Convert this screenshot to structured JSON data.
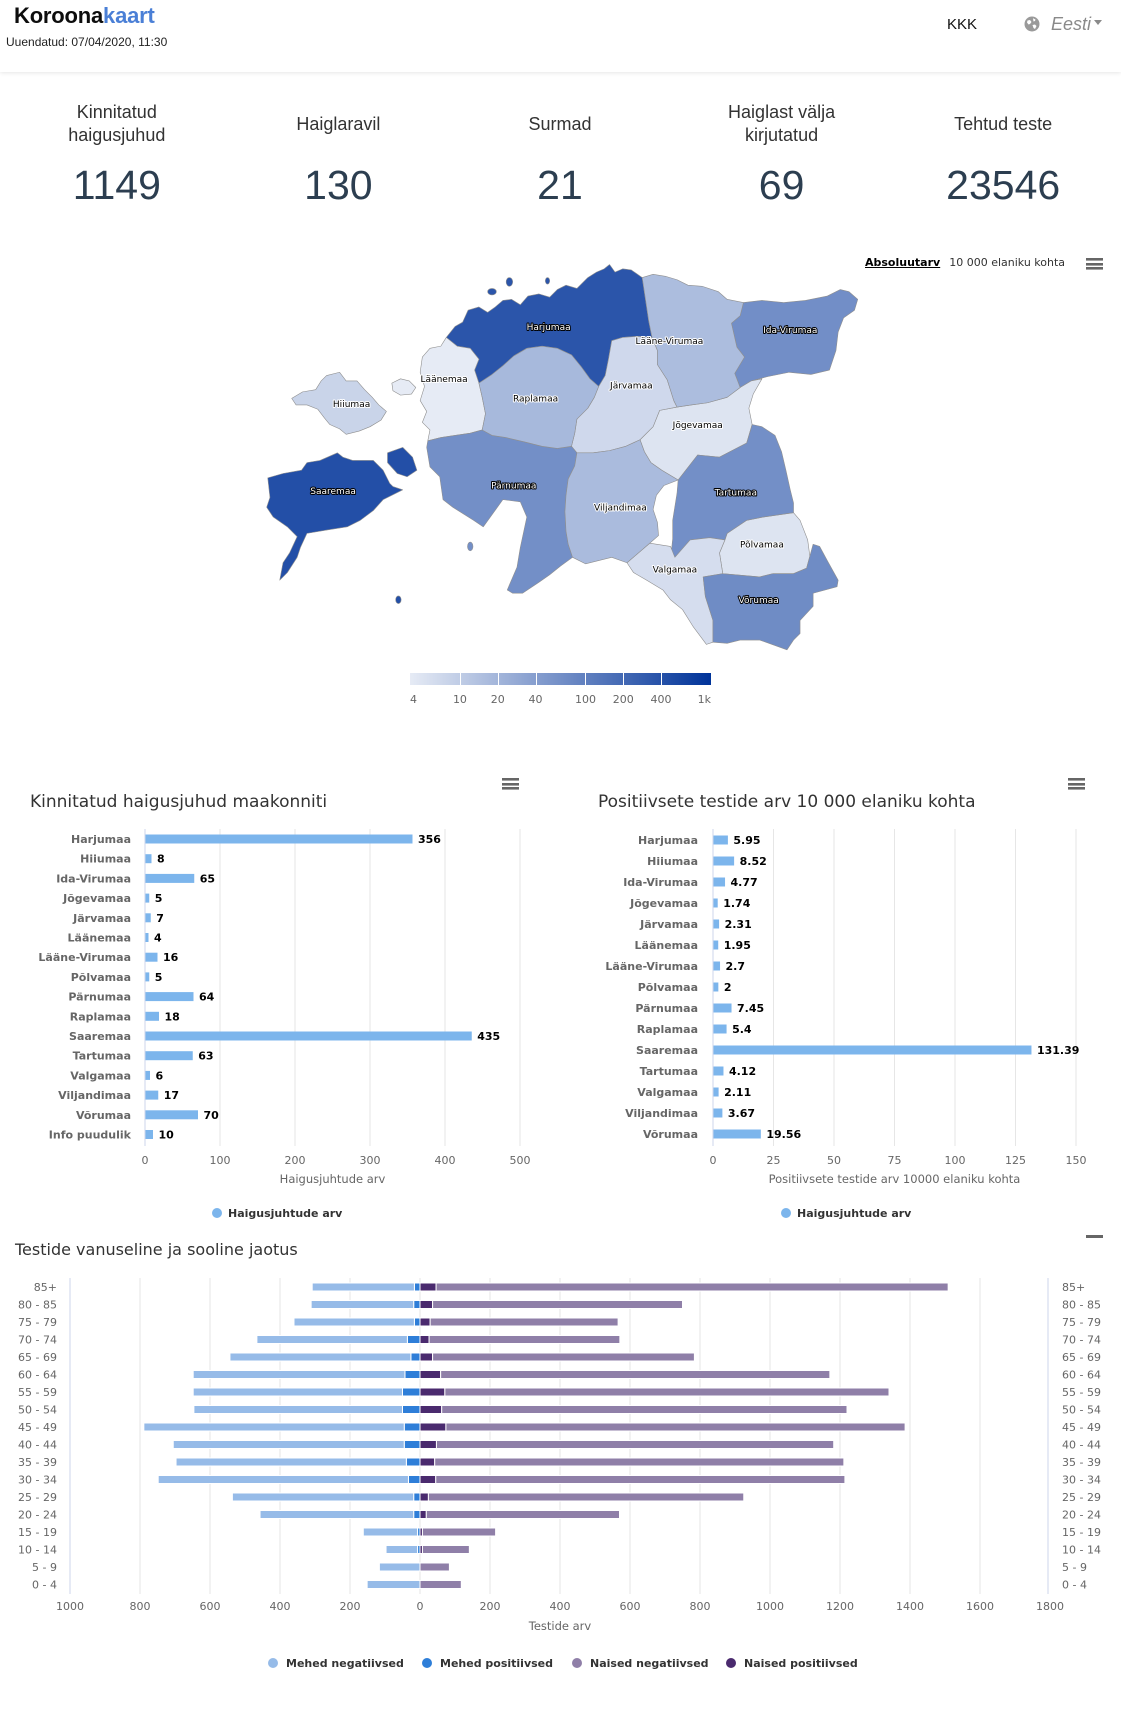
{
  "header": {
    "logo": {
      "part1": "Koroona",
      "part2": "kaart"
    },
    "updated": "Uuendatud: 07/04/2020, 11:30",
    "faq_link": "KKK",
    "language": "Eesti",
    "icons": {
      "language": "globe-icon",
      "dropdown": "caret-down-icon"
    }
  },
  "colors": {
    "brand_accent": "#4a7fd6",
    "stat_value": "#2c3e50",
    "bar": "#7cb5ec"
  },
  "stats": [
    {
      "label": "Kinnitatud haigusjuhud",
      "value": "1149"
    },
    {
      "label": "Haiglaravil",
      "value": "130"
    },
    {
      "label": "Surmad",
      "value": "21"
    },
    {
      "label": "Haiglast välja kirjutatud",
      "value": "69"
    },
    {
      "label": "Tehtud teste",
      "value": "23546"
    }
  ],
  "map": {
    "toggle": {
      "absolute": "Absoluutarv",
      "per_capita": "10 000 elaniku kohta",
      "selected": "absolute"
    },
    "menu_icon": "hamburger-icon",
    "color_scale": {
      "type": "logarithmic",
      "min": 4,
      "max": 1000,
      "min_color": "#e6ebf5",
      "max_color": "#003399"
    },
    "legend_ticks": [
      {
        "label": "4",
        "value": 4
      },
      {
        "label": "10",
        "value": 10
      },
      {
        "label": "20",
        "value": 20
      },
      {
        "label": "40",
        "value": 40
      },
      {
        "label": "100",
        "value": 100
      },
      {
        "label": "200",
        "value": 200
      },
      {
        "label": "400",
        "value": 400
      },
      {
        "label": "1k",
        "value": 1000
      }
    ],
    "counties": [
      {
        "name": "Harjumaa",
        "value": 356
      },
      {
        "name": "Hiiumaa",
        "value": 8
      },
      {
        "name": "Ida-Virumaa",
        "value": 65
      },
      {
        "name": "Jõgevamaa",
        "value": 5
      },
      {
        "name": "Järvamaa",
        "value": 7
      },
      {
        "name": "Läänemaa",
        "value": 4
      },
      {
        "name": "Lääne-Virumaa",
        "value": 16
      },
      {
        "name": "Põlvamaa",
        "value": 5
      },
      {
        "name": "Pärnumaa",
        "value": 64
      },
      {
        "name": "Raplamaa",
        "value": 18
      },
      {
        "name": "Saaremaa",
        "value": 435
      },
      {
        "name": "Tartumaa",
        "value": 63
      },
      {
        "name": "Valgamaa",
        "value": 6
      },
      {
        "name": "Viljandimaa",
        "value": 17
      },
      {
        "name": "Võrumaa",
        "value": 70
      }
    ]
  },
  "chart_data": [
    {
      "type": "bar",
      "title": "Kinnitatud haigusjuhud maakonniti",
      "categories": [
        "Harjumaa",
        "Hiiumaa",
        "Ida-Virumaa",
        "Jõgevamaa",
        "Järvamaa",
        "Läänemaa",
        "Lääne-Virumaa",
        "Põlvamaa",
        "Pärnumaa",
        "Raplamaa",
        "Saaremaa",
        "Tartumaa",
        "Valgamaa",
        "Viljandimaa",
        "Võrumaa",
        "Info puudulik"
      ],
      "series": [
        {
          "name": "Haigusjuhtude arv",
          "color": "#7cb5ec",
          "values": [
            356,
            8,
            65,
            5,
            7,
            4,
            16,
            5,
            64,
            18,
            435,
            63,
            6,
            17,
            70,
            10
          ]
        }
      ],
      "xlabel": "Haigusjuhtude arv",
      "ylabel": "",
      "xlim": [
        0,
        500
      ],
      "xticks": [
        0,
        100,
        200,
        300,
        400,
        500
      ],
      "grid": true,
      "data_labels": true,
      "legend": "bottom-center"
    },
    {
      "type": "bar",
      "title": "Positiivsete testide arv 10 000 elaniku kohta",
      "categories": [
        "Harjumaa",
        "Hiiumaa",
        "Ida-Virumaa",
        "Jõgevamaa",
        "Järvamaa",
        "Läänemaa",
        "Lääne-Virumaa",
        "Põlvamaa",
        "Pärnumaa",
        "Raplamaa",
        "Saaremaa",
        "Tartumaa",
        "Valgamaa",
        "Viljandimaa",
        "Võrumaa"
      ],
      "series": [
        {
          "name": "Haigusjuhtude arv",
          "color": "#7cb5ec",
          "values": [
            5.95,
            8.52,
            4.77,
            1.74,
            2.31,
            1.95,
            2.7,
            2,
            7.45,
            5.4,
            131.39,
            4.12,
            2.11,
            3.67,
            19.56
          ]
        }
      ],
      "xlabel": "Positiivsete testide arv 10000 elaniku kohta",
      "ylabel": "",
      "xlim": [
        0,
        150
      ],
      "xticks": [
        0,
        25,
        50,
        75,
        100,
        125,
        150
      ],
      "grid": true,
      "data_labels": true,
      "legend": "bottom-center"
    },
    {
      "type": "bar",
      "stacking": "normal",
      "title": "Testide vanuseline ja sooline jaotus",
      "categories": [
        "85+",
        "80 - 85",
        "75 - 79",
        "70 - 74",
        "65 - 69",
        "60 - 64",
        "55 - 59",
        "50 - 54",
        "45 - 49",
        "40 - 44",
        "35 - 39",
        "30 - 34",
        "25 - 29",
        "20 - 24",
        "15 - 19",
        "10 - 14",
        "5 - 9",
        "0 - 4"
      ],
      "series": [
        {
          "name": "Mehed negatiivsed",
          "side": "left",
          "color": "#96bbe8",
          "values": [
            292,
            293,
            344,
            430,
            517,
            605,
            598,
            596,
            744,
            660,
            658,
            715,
            518,
            439,
            155,
            90,
            116,
            151
          ]
        },
        {
          "name": "Mehed positiivsed",
          "side": "left",
          "color": "#2e7ed8",
          "values": [
            16,
            18,
            16,
            36,
            26,
            43,
            50,
            50,
            45,
            45,
            39,
            33,
            18,
            18,
            7,
            7,
            0,
            0
          ]
        },
        {
          "name": "Naised negatiivsed",
          "side": "right",
          "color": "#8f7fa8",
          "values": [
            1463,
            714,
            537,
            545,
            748,
            1112,
            1269,
            1158,
            1312,
            1135,
            1169,
            1169,
            901,
            552,
            209,
            134,
            84,
            118
          ]
        },
        {
          "name": "Naised positiivsed",
          "side": "right",
          "color": "#4a2a6e",
          "values": [
            46,
            36,
            29,
            26,
            36,
            59,
            71,
            62,
            74,
            47,
            42,
            45,
            24,
            18,
            7,
            7,
            0,
            0
          ]
        }
      ],
      "xlabel": "Testide arv",
      "xlim": [
        -1000,
        1800
      ],
      "xticks": [
        -1000,
        -800,
        -600,
        -400,
        -200,
        0,
        200,
        400,
        600,
        800,
        1000,
        1200,
        1400,
        1600,
        1800
      ],
      "xtick_labels": [
        "1000",
        "800",
        "600",
        "400",
        "200",
        "0",
        "200",
        "400",
        "600",
        "800",
        "1000",
        "1200",
        "1400",
        "1600",
        "1800"
      ],
      "grid": true,
      "legend": "bottom-center",
      "collapse_icon": "minus-icon"
    }
  ]
}
